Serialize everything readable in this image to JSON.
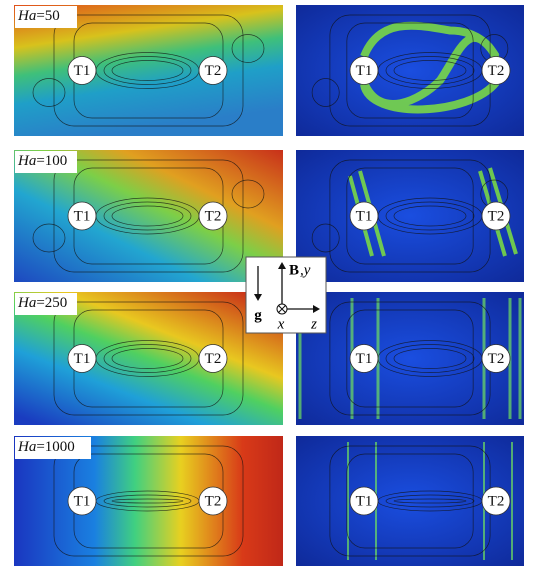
{
  "panels": [
    {
      "label": {
        "symbol": "Ha",
        "value": "=50"
      }
    },
    {
      "label": {
        "symbol": "Ha",
        "value": "=100"
      }
    },
    {
      "label": {
        "symbol": "Ha",
        "value": "=250"
      }
    },
    {
      "label": {
        "symbol": "Ha",
        "value": "=1000"
      }
    }
  ],
  "cylinders": [
    "T1",
    "T2"
  ],
  "inset": {
    "b": "B",
    "y": ",y",
    "g": "g",
    "x": "x",
    "z": "z"
  }
}
